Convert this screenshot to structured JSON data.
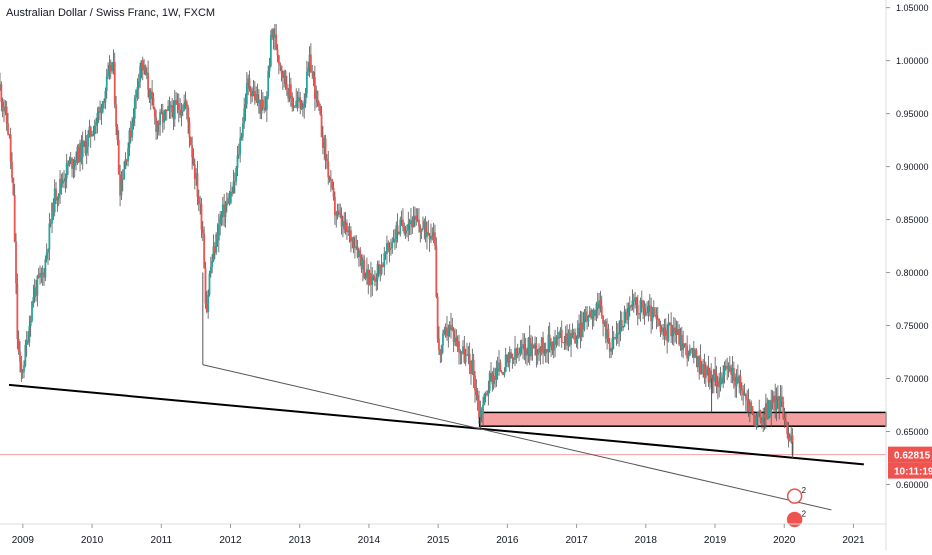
{
  "chart_data": {
    "type": "candlestick",
    "title": "Australian Dollar / Swiss Franc, 1W, FXCM",
    "x": {
      "labels": [
        "2009",
        "2010",
        "2011",
        "2012",
        "2013",
        "2014",
        "2015",
        "2016",
        "2017",
        "2018",
        "2019",
        "2020",
        "2021"
      ],
      "range": [
        2008.67,
        2021.47
      ]
    },
    "y": {
      "labels": [
        "1.05000",
        "1.00000",
        "0.95000",
        "0.90000",
        "0.85000",
        "0.80000",
        "0.75000",
        "0.70000",
        "0.65000",
        "0.60000"
      ],
      "range": [
        0.5627,
        1.0572
      ],
      "side": "right"
    },
    "price_path": [
      [
        2008.67,
        0.975
      ],
      [
        2008.8,
        0.93
      ],
      [
        2008.87,
        0.86
      ],
      [
        2008.92,
        0.74
      ],
      [
        2008.97,
        0.7
      ],
      [
        2009.05,
        0.73
      ],
      [
        2009.15,
        0.78
      ],
      [
        2009.3,
        0.8
      ],
      [
        2009.45,
        0.87
      ],
      [
        2009.65,
        0.9
      ],
      [
        2009.9,
        0.92
      ],
      [
        2010.1,
        0.95
      ],
      [
        2010.3,
        1.0
      ],
      [
        2010.4,
        0.88
      ],
      [
        2010.55,
        0.93
      ],
      [
        2010.7,
        1.0
      ],
      [
        2010.8,
        0.98
      ],
      [
        2010.92,
        0.94
      ],
      [
        2011.1,
        0.95
      ],
      [
        2011.35,
        0.96
      ],
      [
        2011.6,
        0.84
      ],
      [
        2011.65,
        0.76
      ],
      [
        2011.7,
        0.8
      ],
      [
        2011.85,
        0.85
      ],
      [
        2012.05,
        0.88
      ],
      [
        2012.25,
        0.98
      ],
      [
        2012.4,
        0.96
      ],
      [
        2012.5,
        0.95
      ],
      [
        2012.6,
        1.03
      ],
      [
        2012.75,
        0.99
      ],
      [
        2012.9,
        0.96
      ],
      [
        2013.05,
        0.96
      ],
      [
        2013.15,
        1.0
      ],
      [
        2013.3,
        0.94
      ],
      [
        2013.5,
        0.86
      ],
      [
        2013.65,
        0.84
      ],
      [
        2013.8,
        0.83
      ],
      [
        2014.0,
        0.79
      ],
      [
        2014.2,
        0.81
      ],
      [
        2014.4,
        0.84
      ],
      [
        2014.6,
        0.85
      ],
      [
        2014.8,
        0.84
      ],
      [
        2014.95,
        0.84
      ],
      [
        2015.0,
        0.72
      ],
      [
        2015.15,
        0.75
      ],
      [
        2015.3,
        0.73
      ],
      [
        2015.5,
        0.71
      ],
      [
        2015.6,
        0.665
      ],
      [
        2015.75,
        0.7
      ],
      [
        2015.9,
        0.71
      ],
      [
        2016.1,
        0.72
      ],
      [
        2016.3,
        0.73
      ],
      [
        2016.5,
        0.73
      ],
      [
        2016.8,
        0.74
      ],
      [
        2017.0,
        0.74
      ],
      [
        2017.15,
        0.76
      ],
      [
        2017.3,
        0.77
      ],
      [
        2017.5,
        0.73
      ],
      [
        2017.7,
        0.76
      ],
      [
        2017.85,
        0.77
      ],
      [
        2018.1,
        0.76
      ],
      [
        2018.25,
        0.74
      ],
      [
        2018.4,
        0.75
      ],
      [
        2018.55,
        0.73
      ],
      [
        2018.7,
        0.72
      ],
      [
        2018.95,
        0.7
      ],
      [
        2019.1,
        0.7
      ],
      [
        2019.2,
        0.71
      ],
      [
        2019.3,
        0.7
      ],
      [
        2019.45,
        0.68
      ],
      [
        2019.6,
        0.66
      ],
      [
        2019.75,
        0.67
      ],
      [
        2019.9,
        0.68
      ],
      [
        2020.0,
        0.67
      ],
      [
        2020.05,
        0.65
      ],
      [
        2020.1,
        0.64
      ],
      [
        2020.12,
        0.628
      ]
    ],
    "last_price": "0.62815",
    "countdown": "10:11:19",
    "trendlines": [
      {
        "from": [
          2008.8,
          0.694
        ],
        "to": [
          2021.15,
          0.619
        ],
        "color": "#000000"
      },
      {
        "from": [
          2011.6,
          0.713
        ],
        "to": [
          2020.68,
          0.576
        ],
        "color": "#555555"
      }
    ],
    "wicks": [
      {
        "x": 2011.6,
        "from": 0.713,
        "to": 0.8
      },
      {
        "x": 2018.95,
        "from": 0.668,
        "to": 0.7
      },
      {
        "x": 2020.12,
        "from": 0.625,
        "to": 0.64
      }
    ],
    "zone": {
      "from_x": 2015.6,
      "to_x": 2021.47,
      "low": 0.655,
      "high": 0.668,
      "color": "#f4a0a0"
    },
    "price_line": {
      "y": 0.62815,
      "color": "#f4a0a0"
    },
    "events": [
      {
        "x": 2020.15,
        "y": 0.589,
        "text": "2"
      },
      {
        "x": 2020.15,
        "y": 0.567,
        "text": "2"
      }
    ],
    "colors": {
      "up": "#26a69a",
      "down": "#ef5350",
      "candle": "#555555",
      "tag": "#ef5350",
      "axis_text": "#131722"
    }
  }
}
